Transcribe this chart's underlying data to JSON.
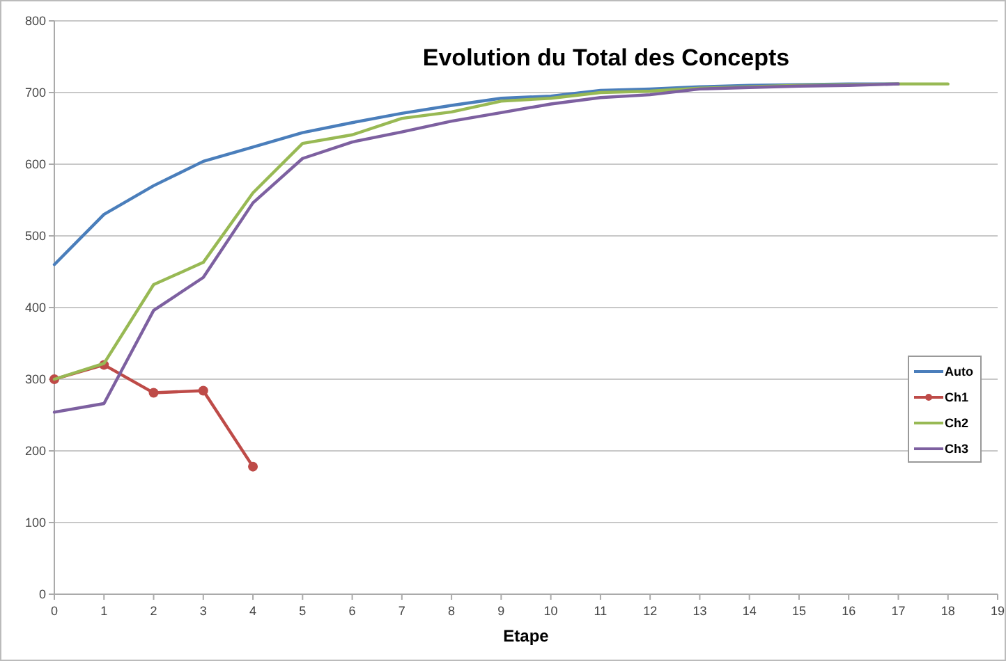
{
  "chart_data": {
    "type": "line",
    "title": "Evolution du Total des Concepts",
    "xlabel": "Etape",
    "xlim": [
      0,
      19
    ],
    "xticks": [
      0,
      1,
      2,
      3,
      4,
      5,
      6,
      7,
      8,
      9,
      10,
      11,
      12,
      13,
      14,
      15,
      16,
      17,
      18,
      19
    ],
    "ylim": [
      0,
      800
    ],
    "yticks": [
      0,
      100,
      200,
      300,
      400,
      500,
      600,
      700,
      800
    ],
    "grid": "y",
    "legend": "right",
    "series": [
      {
        "name": "Auto",
        "color": "#4a7ebb",
        "marker": "none",
        "x": [
          0,
          1,
          2,
          3,
          4,
          5,
          6,
          7,
          8,
          9,
          10,
          11,
          12,
          13,
          14,
          15,
          16,
          17
        ],
        "values": [
          460,
          530,
          570,
          604,
          624,
          644,
          658,
          671,
          682,
          692,
          695,
          703,
          705,
          708,
          710,
          711,
          712,
          712
        ]
      },
      {
        "name": "Ch1",
        "color": "#be4b48",
        "marker": "circle",
        "x": [
          0,
          1,
          2,
          3,
          4
        ],
        "values": [
          300,
          320,
          281,
          284,
          178
        ]
      },
      {
        "name": "Ch2",
        "color": "#98b954",
        "marker": "none",
        "x": [
          0,
          1,
          2,
          3,
          4,
          5,
          6,
          7,
          8,
          9,
          10,
          11,
          12,
          13,
          14,
          15,
          16,
          17,
          18
        ],
        "values": [
          300,
          322,
          432,
          463,
          560,
          629,
          641,
          664,
          673,
          688,
          692,
          700,
          702,
          706,
          708,
          710,
          711,
          712,
          712
        ]
      },
      {
        "name": "Ch3",
        "color": "#7d60a0",
        "marker": "none",
        "x": [
          0,
          1,
          2,
          3,
          4,
          5,
          6,
          7,
          8,
          9,
          10,
          11,
          12,
          13,
          14,
          15,
          16,
          17
        ],
        "values": [
          254,
          266,
          396,
          442,
          546,
          608,
          631,
          645,
          660,
          672,
          684,
          693,
          697,
          705,
          707,
          709,
          710,
          712
        ]
      }
    ]
  }
}
